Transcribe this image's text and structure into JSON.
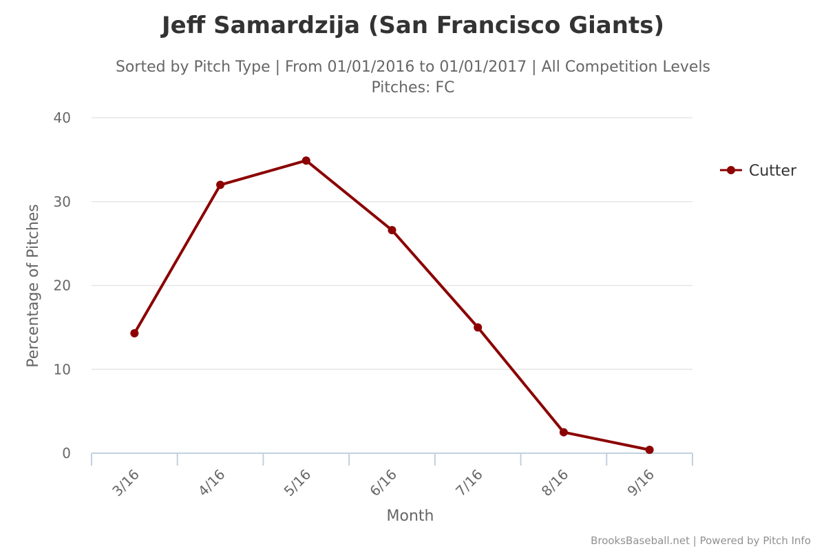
{
  "chart_data": {
    "type": "line",
    "title": "Jeff Samardzija (San Francisco Giants)",
    "subtitle_line1": "Sorted by Pitch Type | From 01/01/2016 to 01/01/2017 | All Competition Levels",
    "subtitle_line2": "Pitches: FC",
    "xlabel": "Month",
    "ylabel": "Percentage of Pitches",
    "categories": [
      "3/16",
      "4/16",
      "5/16",
      "6/16",
      "7/16",
      "8/16",
      "9/16"
    ],
    "yticks": [
      0,
      10,
      20,
      30,
      40
    ],
    "ylim": [
      0,
      40
    ],
    "grid": true,
    "legend_position": "right",
    "series": [
      {
        "name": "Cutter",
        "color": "#8b0000",
        "values": [
          14.3,
          32.0,
          34.9,
          26.6,
          15.0,
          2.5,
          0.4
        ]
      }
    ]
  },
  "credits": "BrooksBaseball.net | Powered by Pitch Info"
}
